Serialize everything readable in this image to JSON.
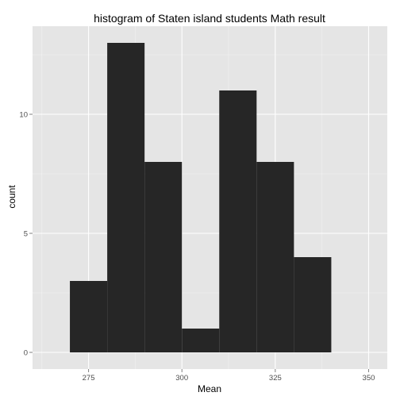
{
  "chart_data": {
    "type": "histogram",
    "title": "histogram of Staten island students Math result",
    "xlabel": "Mean",
    "ylabel": "count",
    "xlim": [
      260,
      355
    ],
    "ylim": [
      -0.7,
      13.7
    ],
    "x_ticks": [
      275,
      300,
      325,
      350
    ],
    "y_ticks": [
      0,
      5,
      10
    ],
    "bin_width": 10,
    "bins": [
      {
        "x_start": 270,
        "x_end": 280,
        "count": 3
      },
      {
        "x_start": 280,
        "x_end": 290,
        "count": 13
      },
      {
        "x_start": 290,
        "x_end": 300,
        "count": 8
      },
      {
        "x_start": 300,
        "x_end": 310,
        "count": 1
      },
      {
        "x_start": 310,
        "x_end": 320,
        "count": 11
      },
      {
        "x_start": 320,
        "x_end": 330,
        "count": 8
      },
      {
        "x_start": 330,
        "x_end": 340,
        "count": 4
      }
    ],
    "grid": true,
    "legend": "none"
  },
  "colors": {
    "panel_background": "#e5e5e5",
    "grid_major": "#ffffff",
    "grid_minor": "#f2f2f2",
    "bar_fill": "#262626",
    "tick_text": "#4d4d4d"
  }
}
